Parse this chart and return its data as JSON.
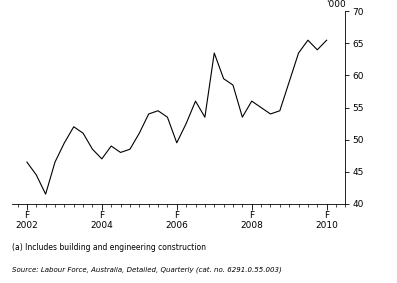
{
  "ylabel_right": "'000",
  "footnote_a": "(a) Includes building and engineering construction",
  "source": "Source: Labour Force, Australia, Detailed, Quarterly (cat. no. 6291.0.55.003)",
  "ylim": [
    40,
    70
  ],
  "yticks": [
    40,
    45,
    50,
    55,
    60,
    65,
    70
  ],
  "x_tick_positions": [
    2002.0,
    2004.0,
    2006.0,
    2008.0,
    2010.0
  ],
  "line_color": "#000000",
  "background_color": "#ffffff",
  "data_x": [
    2002.0,
    2002.25,
    2002.5,
    2002.75,
    2003.0,
    2003.25,
    2003.5,
    2003.75,
    2004.0,
    2004.25,
    2004.5,
    2004.75,
    2005.0,
    2005.25,
    2005.5,
    2005.75,
    2006.0,
    2006.25,
    2006.5,
    2006.75,
    2007.0,
    2007.25,
    2007.5,
    2007.75,
    2008.0,
    2008.25,
    2008.5,
    2008.75,
    2009.0,
    2009.25,
    2009.5,
    2009.75,
    2010.0
  ],
  "data_y": [
    46.5,
    44.5,
    41.5,
    46.5,
    49.5,
    52.0,
    51.0,
    48.5,
    47.0,
    49.0,
    48.0,
    48.5,
    51.0,
    54.0,
    54.5,
    53.5,
    49.5,
    52.5,
    56.0,
    53.5,
    63.5,
    59.5,
    58.5,
    53.5,
    56.0,
    55.0,
    54.0,
    54.5,
    59.0,
    63.5,
    65.5,
    64.0,
    65.5
  ],
  "xlim_left": 2001.6,
  "xlim_right": 2010.5
}
